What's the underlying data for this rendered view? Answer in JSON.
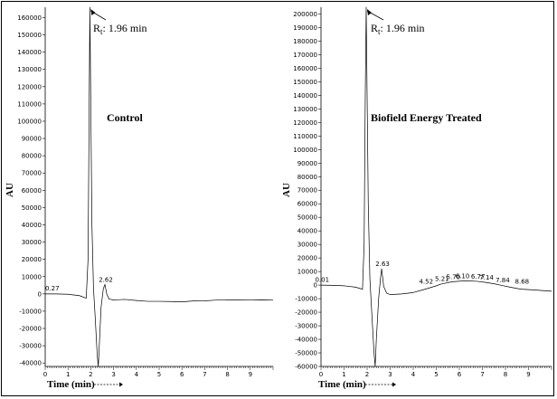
{
  "chart_data": [
    {
      "type": "line",
      "title": "Control",
      "xlabel": "Time (min)",
      "ylabel": "AU",
      "xlim": [
        0,
        10
      ],
      "ylim": [
        -42000,
        166000
      ],
      "x_ticks": [
        0,
        1,
        2,
        3,
        4,
        5,
        6,
        7,
        8,
        9
      ],
      "y_ticks": [
        -40000,
        -30000,
        -20000,
        -10000,
        0,
        10000,
        20000,
        30000,
        40000,
        50000,
        60000,
        70000,
        80000,
        90000,
        100000,
        110000,
        120000,
        130000,
        140000,
        150000,
        160000
      ],
      "annotation": "Rt: 1.96 min",
      "annotation_rt": 1.96,
      "peak_labels": [
        {
          "x": 0.27,
          "y": 500,
          "text": "0.27"
        },
        {
          "x": 2.62,
          "y": 5500,
          "text": "2.62"
        }
      ],
      "series": [
        {
          "values": [
            [
              0,
              0
            ],
            [
              0.5,
              0
            ],
            [
              1.0,
              -200
            ],
            [
              1.5,
              -1000
            ],
            [
              1.8,
              -2500
            ],
            [
              1.88,
              20000
            ],
            [
              1.93,
              110000
            ],
            [
              1.96,
              166000
            ],
            [
              2.0,
              110000
            ],
            [
              2.05,
              40000
            ],
            [
              2.12,
              3000
            ],
            [
              2.2,
              -15000
            ],
            [
              2.28,
              -35000
            ],
            [
              2.33,
              -42000
            ],
            [
              2.38,
              -28000
            ],
            [
              2.45,
              -8000
            ],
            [
              2.55,
              3000
            ],
            [
              2.62,
              5500
            ],
            [
              2.7,
              0
            ],
            [
              2.8,
              -3000
            ],
            [
              3.0,
              -3500
            ],
            [
              3.5,
              -3200
            ],
            [
              4.0,
              -3800
            ],
            [
              4.5,
              -4300
            ],
            [
              5.0,
              -4300
            ],
            [
              5.5,
              -4400
            ],
            [
              6.0,
              -4600
            ],
            [
              6.5,
              -4100
            ],
            [
              7.0,
              -4000
            ],
            [
              7.5,
              -3600
            ],
            [
              8.0,
              -3400
            ],
            [
              8.5,
              -3500
            ],
            [
              9.0,
              -3600
            ],
            [
              9.5,
              -3500
            ],
            [
              10.0,
              -3600
            ]
          ]
        }
      ]
    },
    {
      "type": "line",
      "title": "Biofield Energy Treated",
      "xlabel": "Time (min)",
      "ylabel": "AU",
      "xlim": [
        0,
        10
      ],
      "ylim": [
        -60000,
        205000
      ],
      "x_ticks": [
        0,
        1,
        2,
        3,
        4,
        5,
        6,
        7,
        8,
        9
      ],
      "y_ticks": [
        -60000,
        -50000,
        -40000,
        -30000,
        -20000,
        -10000,
        0,
        10000,
        20000,
        30000,
        40000,
        50000,
        60000,
        70000,
        80000,
        90000,
        100000,
        110000,
        120000,
        130000,
        140000,
        150000,
        160000,
        170000,
        180000,
        190000,
        200000
      ],
      "annotation": "Rt: 1.96 min",
      "annotation_rt": 1.96,
      "peak_labels": [
        {
          "x": 0.01,
          "y": 300,
          "text": "0.01"
        },
        {
          "x": 2.63,
          "y": 12000,
          "text": "2.63"
        },
        {
          "x": 4.52,
          "y": -1000,
          "text": "4.52"
        },
        {
          "x": 5.21,
          "y": 1200,
          "text": "5.21"
        },
        {
          "x": 5.7,
          "y": 2500,
          "text": "5.70"
        },
        {
          "x": 6.1,
          "y": 3000,
          "text": "6.10"
        },
        {
          "x": 6.77,
          "y": 2800,
          "text": "6.77"
        },
        {
          "x": 7.14,
          "y": 2000,
          "text": "7.14"
        },
        {
          "x": 7.84,
          "y": 0,
          "text": "7.84"
        },
        {
          "x": 8.68,
          "y": -1000,
          "text": "8.68"
        }
      ],
      "series": [
        {
          "values": [
            [
              0,
              0
            ],
            [
              0.5,
              -200
            ],
            [
              1.0,
              -500
            ],
            [
              1.5,
              -1500
            ],
            [
              1.8,
              -3000
            ],
            [
              1.87,
              30000
            ],
            [
              1.92,
              140000
            ],
            [
              1.96,
              205000
            ],
            [
              2.0,
              140000
            ],
            [
              2.05,
              60000
            ],
            [
              2.12,
              5000
            ],
            [
              2.2,
              -20000
            ],
            [
              2.3,
              -50000
            ],
            [
              2.35,
              -60000
            ],
            [
              2.4,
              -40000
            ],
            [
              2.5,
              -10000
            ],
            [
              2.58,
              5000
            ],
            [
              2.63,
              12000
            ],
            [
              2.72,
              -1000
            ],
            [
              2.85,
              -6000
            ],
            [
              3.0,
              -7000
            ],
            [
              3.5,
              -6500
            ],
            [
              4.0,
              -5500
            ],
            [
              4.52,
              -3000
            ],
            [
              5.0,
              -500
            ],
            [
              5.21,
              800
            ],
            [
              5.7,
              2500
            ],
            [
              6.1,
              3000
            ],
            [
              6.5,
              3000
            ],
            [
              6.77,
              2800
            ],
            [
              7.14,
              2000
            ],
            [
              7.5,
              1000
            ],
            [
              7.84,
              -200
            ],
            [
              8.2,
              -1500
            ],
            [
              8.68,
              -3000
            ],
            [
              9.2,
              -3500
            ],
            [
              10.0,
              -4500
            ]
          ]
        }
      ]
    }
  ]
}
